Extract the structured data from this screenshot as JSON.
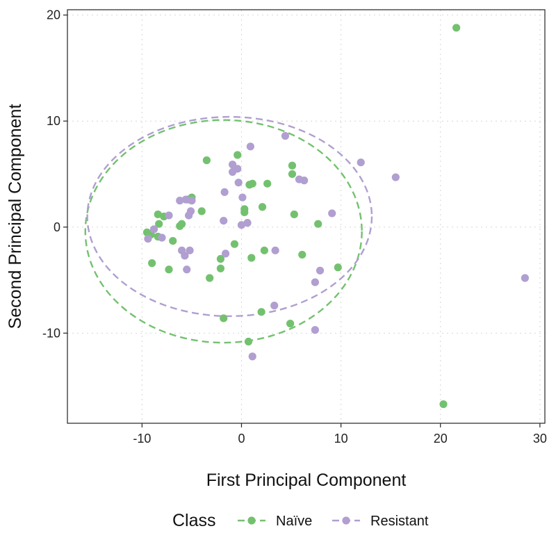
{
  "chart_data": {
    "type": "scatter",
    "xlabel": "First Principal Component",
    "ylabel": "Second Principal Component",
    "xlim": [
      -17.5,
      30.5
    ],
    "ylim": [
      -18.5,
      20.5
    ],
    "x_ticks": [
      -10,
      0,
      10,
      20,
      30
    ],
    "y_ticks": [
      -10,
      0,
      10,
      20
    ],
    "x_tick_labels": [
      "-10",
      "0",
      "10",
      "20",
      "30"
    ],
    "y_tick_labels": [
      "-10",
      "0",
      "10",
      "20"
    ],
    "grid": true,
    "legend": {
      "title": "Class",
      "position": "bottom"
    },
    "series": [
      {
        "name": "Naïve",
        "color": "#73c16f",
        "ellipse": {
          "cx": -1.8,
          "cy": -0.4,
          "rx": 13.9,
          "ry": 10.5
        },
        "points": [
          [
            21.6,
            18.8
          ],
          [
            20.3,
            -16.7
          ],
          [
            -3.5,
            6.3
          ],
          [
            -0.4,
            6.8
          ],
          [
            5.1,
            5.8
          ],
          [
            5.1,
            5.0
          ],
          [
            0.8,
            4.0
          ],
          [
            1.1,
            4.1
          ],
          [
            2.6,
            4.1
          ],
          [
            -5.0,
            2.8
          ],
          [
            -5.4,
            2.6
          ],
          [
            -4.0,
            1.5
          ],
          [
            0.3,
            1.7
          ],
          [
            0.3,
            1.4
          ],
          [
            2.1,
            1.9
          ],
          [
            5.3,
            1.2
          ],
          [
            7.7,
            0.3
          ],
          [
            -8.4,
            1.2
          ],
          [
            -7.8,
            1.0
          ],
          [
            -8.3,
            0.3
          ],
          [
            -6.0,
            0.3
          ],
          [
            -6.2,
            0.1
          ],
          [
            -9.5,
            -0.5
          ],
          [
            -9.1,
            -0.7
          ],
          [
            -8.4,
            -0.9
          ],
          [
            -6.9,
            -1.3
          ],
          [
            -0.7,
            -1.6
          ],
          [
            2.3,
            -2.2
          ],
          [
            6.1,
            -2.6
          ],
          [
            -9.0,
            -3.4
          ],
          [
            -2.1,
            -3.0
          ],
          [
            1.0,
            -2.9
          ],
          [
            -7.3,
            -4.0
          ],
          [
            -2.1,
            -3.9
          ],
          [
            9.7,
            -3.8
          ],
          [
            -3.2,
            -4.8
          ],
          [
            -1.8,
            -8.6
          ],
          [
            2.0,
            -8.0
          ],
          [
            4.9,
            -9.1
          ],
          [
            0.7,
            -10.8
          ]
        ]
      },
      {
        "name": "Resistant",
        "color": "#b09fd0",
        "ellipse": {
          "cx": -1.2,
          "cy": 1.0,
          "rx": 14.3,
          "ry": 9.4
        },
        "points": [
          [
            28.5,
            -4.8
          ],
          [
            4.4,
            8.6
          ],
          [
            0.9,
            7.6
          ],
          [
            12.0,
            6.1
          ],
          [
            15.5,
            4.7
          ],
          [
            -0.9,
            5.9
          ],
          [
            -0.4,
            5.5
          ],
          [
            -0.9,
            5.2
          ],
          [
            5.8,
            4.5
          ],
          [
            6.3,
            4.4
          ],
          [
            -0.3,
            4.2
          ],
          [
            -1.7,
            3.3
          ],
          [
            0.1,
            2.8
          ],
          [
            -6.2,
            2.5
          ],
          [
            -5.6,
            2.6
          ],
          [
            -5.0,
            2.5
          ],
          [
            -5.1,
            1.5
          ],
          [
            -5.3,
            1.1
          ],
          [
            -7.3,
            1.1
          ],
          [
            9.1,
            1.3
          ],
          [
            -1.8,
            0.6
          ],
          [
            0.6,
            0.4
          ],
          [
            0.0,
            0.2
          ],
          [
            -8.8,
            -0.2
          ],
          [
            -9.4,
            -1.1
          ],
          [
            -8.0,
            -1.0
          ],
          [
            -6.0,
            -2.2
          ],
          [
            -5.7,
            -2.7
          ],
          [
            -5.2,
            -2.2
          ],
          [
            3.4,
            -2.2
          ],
          [
            -1.6,
            -2.5
          ],
          [
            -5.5,
            -4.0
          ],
          [
            7.9,
            -4.1
          ],
          [
            7.4,
            -5.2
          ],
          [
            3.3,
            -7.4
          ],
          [
            7.4,
            -9.7
          ],
          [
            1.1,
            -12.2
          ]
        ]
      }
    ]
  }
}
